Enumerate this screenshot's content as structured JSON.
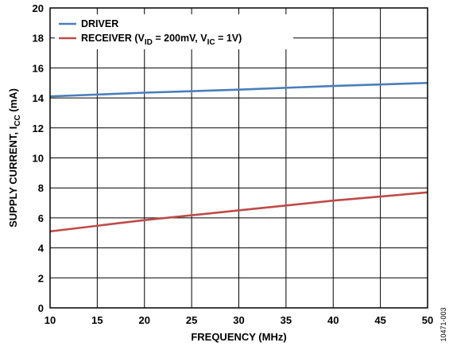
{
  "chart_data": {
    "type": "line",
    "xlabel": "FREQUENCY (MHz)",
    "ylabel": {
      "main": "SUPPLY CURRENT, I",
      "sub": "CC",
      "suffix": " (mA)"
    },
    "xlim": [
      10,
      50
    ],
    "ylim": [
      0,
      20
    ],
    "xticks": [
      10,
      15,
      20,
      25,
      30,
      35,
      40,
      45,
      50
    ],
    "yticks": [
      0,
      2,
      4,
      6,
      8,
      10,
      12,
      14,
      16,
      18,
      20
    ],
    "grid": true,
    "legend_position": "top-left",
    "series": [
      {
        "name": "DRIVER",
        "color": "#4a7ebb",
        "x": [
          10,
          20,
          30,
          40,
          50
        ],
        "y": [
          14.1,
          14.35,
          14.55,
          14.8,
          15.0
        ]
      },
      {
        "name": "RECEIVER (VID = 200mV, VIC = 1V)",
        "legend_parts": [
          {
            "t": "RECEIVER (V",
            "sub": false
          },
          {
            "t": "ID",
            "sub": true
          },
          {
            "t": " = 200mV, V",
            "sub": false
          },
          {
            "t": "IC",
            "sub": true
          },
          {
            "t": " = 1V)",
            "sub": false
          }
        ],
        "color": "#be4b48",
        "x": [
          10,
          20,
          30,
          40,
          50
        ],
        "y": [
          5.1,
          5.85,
          6.5,
          7.15,
          7.7
        ]
      }
    ],
    "figure_id": "10471-003"
  }
}
